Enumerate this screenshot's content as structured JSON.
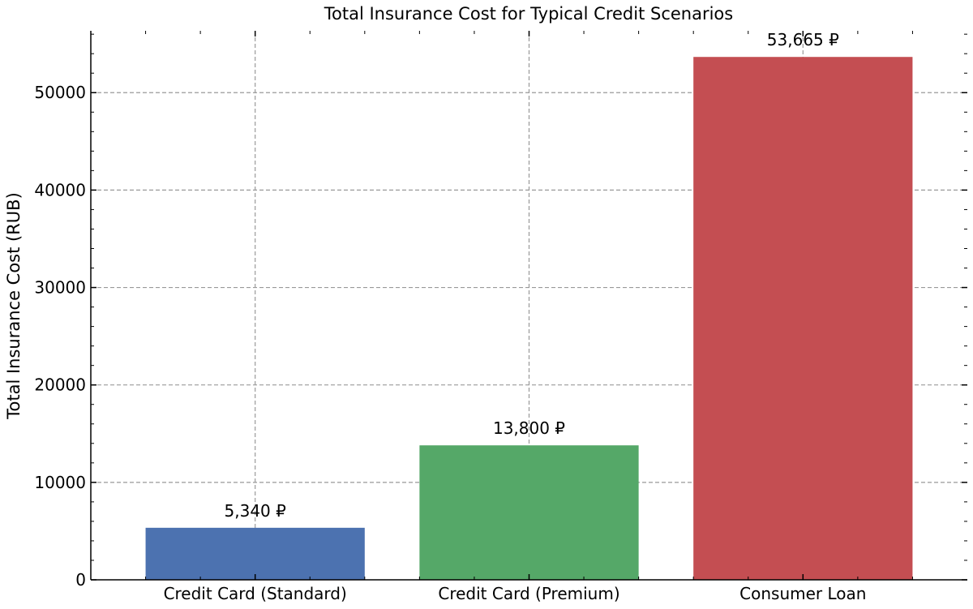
{
  "chart_data": {
    "type": "bar",
    "title": "Total Insurance Cost for Typical Credit Scenarios",
    "xlabel": "",
    "ylabel": "Total Insurance Cost (RUB)",
    "categories": [
      "Credit Card (Standard)",
      "Credit Card (Premium)",
      "Consumer Loan"
    ],
    "values": [
      5340,
      13800,
      53665
    ],
    "data_labels": [
      "5,340 ₽",
      "13,800 ₽",
      "53,665 ₽"
    ],
    "colors": [
      "#4c72b0",
      "#55a868",
      "#c44e52"
    ],
    "ylim": [
      0,
      56346
    ],
    "yticks": [
      0,
      10000,
      20000,
      30000,
      40000,
      50000
    ],
    "ytick_labels": [
      "0",
      "10000",
      "20000",
      "30000",
      "40000",
      "50000"
    ],
    "grid": true,
    "legend": "none"
  }
}
